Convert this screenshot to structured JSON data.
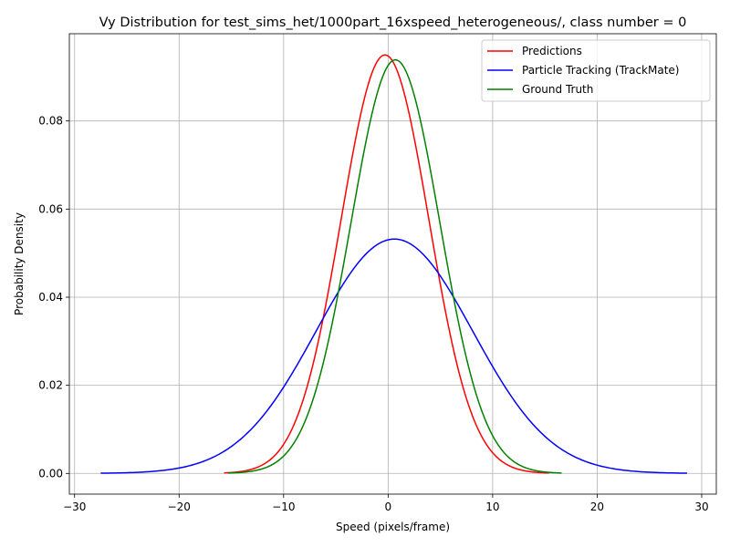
{
  "chart_data": {
    "type": "line",
    "title": "Vy Distribution for test_sims_het/1000part_16xspeed_heterogeneous/, class number = 0",
    "xlabel": "Speed (pixels/frame)",
    "ylabel": "Probability Density",
    "xlim": [
      -30.5,
      31.4
    ],
    "ylim": [
      -0.0047,
      0.0998
    ],
    "xticks": [
      -30,
      -20,
      -10,
      0,
      10,
      20,
      30
    ],
    "xtick_labels": [
      "−30",
      "−20",
      "−10",
      "0",
      "10",
      "20",
      "30"
    ],
    "yticks": [
      0.0,
      0.02,
      0.04,
      0.06,
      0.08
    ],
    "ytick_labels": [
      "0.00",
      "0.02",
      "0.04",
      "0.06",
      "0.08"
    ],
    "grid": true,
    "legend_position": "top-right",
    "series": [
      {
        "name": "Predictions",
        "color": "#ff0000",
        "distribution": "normal",
        "mean": -0.3,
        "std": 4.2,
        "x_range": [
          -15.7,
          15.4
        ]
      },
      {
        "name": "Particle Tracking (TrackMate)",
        "color": "#0000ff",
        "distribution": "normal",
        "mean": 0.6,
        "std": 7.5,
        "x_range": [
          -27.5,
          28.6
        ]
      },
      {
        "name": "Ground Truth",
        "color": "#008000",
        "distribution": "normal",
        "mean": 0.7,
        "std": 4.25,
        "x_range": [
          -15.3,
          16.6
        ]
      }
    ]
  }
}
